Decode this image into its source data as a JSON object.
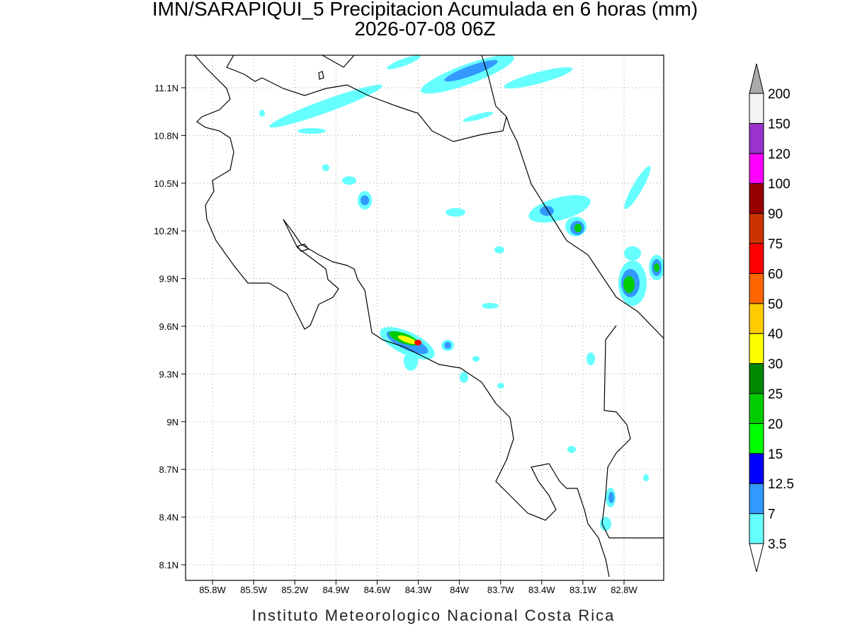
{
  "header": {
    "title": "IMN/SARAPIQUI_5 Precipitacion Acumulada en 6 horas (mm)",
    "subtitle": "2026-07-08 06Z"
  },
  "map": {
    "lon_labels": [
      "85.8W",
      "85.5W",
      "85.2W",
      "84.9W",
      "84.6W",
      "84.3W",
      "84W",
      "83.7W",
      "83.4W",
      "83.1W",
      "82.8W"
    ],
    "lat_labels": [
      "11.1N",
      "10.8N",
      "10.5N",
      "10.2N",
      "9.9N",
      "9.6N",
      "9.3N",
      "9N",
      "8.7N",
      "8.4N",
      "8.1N"
    ]
  },
  "colorbar": {
    "labels": [
      "3.5",
      "7",
      "12.5",
      "15",
      "20",
      "25",
      "30",
      "40",
      "50",
      "60",
      "75",
      "90",
      "100",
      "120",
      "150",
      "200"
    ],
    "colors": [
      "#ffffff",
      "#66ffff",
      "#3399ff",
      "#0000ff",
      "#00ff00",
      "#00cc00",
      "#008800",
      "#ffff00",
      "#ffcc00",
      "#ff6600",
      "#ff0000",
      "#cc3300",
      "#990000",
      "#ff00ff",
      "#9933cc",
      "#f4f4f4",
      "#aaaaaa"
    ]
  },
  "footer": {
    "credit": "Instituto Meteorologico Nacional Costa Rica"
  }
}
